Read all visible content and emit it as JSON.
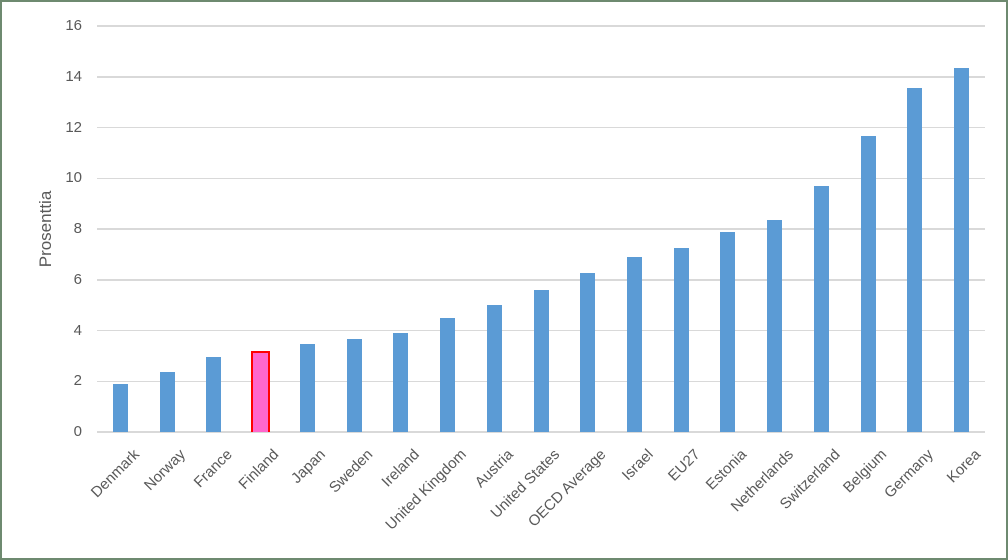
{
  "frame": {
    "border_color": "#6e8a70",
    "background_color": "#ffffff"
  },
  "chart_data": {
    "type": "bar",
    "title": "",
    "xlabel": "",
    "ylabel": "Prosenttia",
    "ylim": [
      0,
      16
    ],
    "yticks": [
      0,
      2,
      4,
      6,
      8,
      10,
      12,
      14,
      16
    ],
    "grid": true,
    "legend": false,
    "categories": [
      "Denmark",
      "Norway",
      "France",
      "Finland",
      "Japan",
      "Sweden",
      "Ireland",
      "United Kingdom",
      "Austria",
      "United States",
      "OECD Average",
      "Israel",
      "EU27",
      "Estonia",
      "Netherlands",
      "Switzerland",
      "Belgium",
      "Germany",
      "Korea"
    ],
    "values": [
      1.9,
      2.35,
      2.95,
      3.1,
      3.45,
      3.65,
      3.9,
      4.5,
      5.0,
      5.6,
      6.25,
      6.9,
      7.25,
      7.9,
      8.35,
      9.7,
      11.65,
      13.55,
      14.35
    ],
    "highlight": {
      "category": "Finland",
      "index": 3,
      "fill_color": "#ff66cc",
      "border_color": "#ff0000"
    },
    "colors": {
      "bar": "#5b9bd5",
      "gridline": "#d9d9d9",
      "axis_text": "#595959"
    }
  }
}
